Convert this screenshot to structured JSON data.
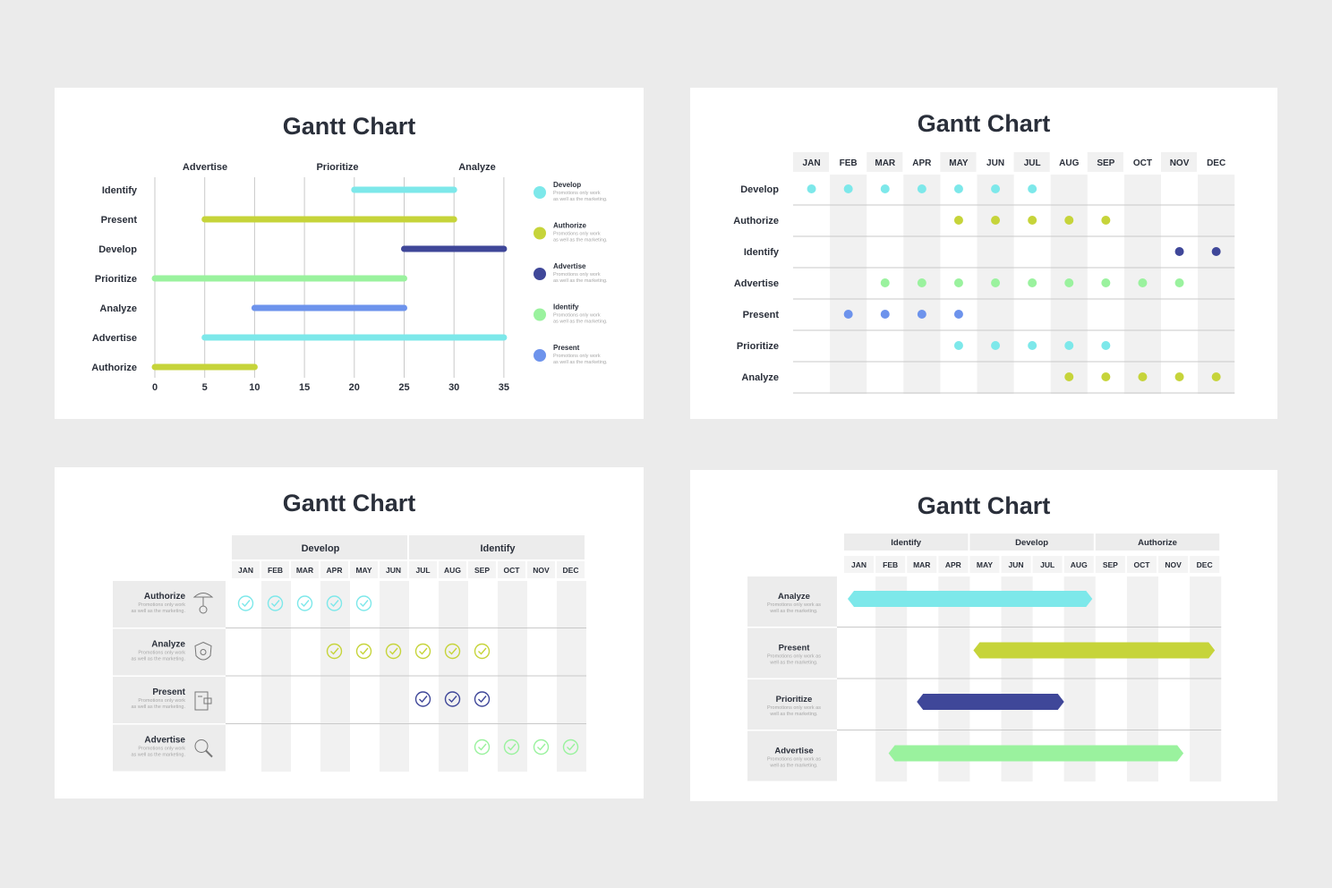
{
  "colors": {
    "cyan": "#7de8ea",
    "lime": "#c6d43a",
    "navy": "#3f4799",
    "green": "#9af29e",
    "blue": "#6d93ec",
    "stripe": "#f1f1f1",
    "grid": "#c9c9c9",
    "text": "#2a2f3a",
    "muted": "#a7a7a7"
  },
  "chart_data": [
    {
      "type": "bar",
      "title": "Gantt Chart",
      "phases": [
        "Advertise",
        "Prioritize",
        "Analyze"
      ],
      "categories": [
        "Identify",
        "Present",
        "Develop",
        "Prioritize",
        "Analyze",
        "Advertise",
        "Authorize"
      ],
      "starts": [
        20,
        5,
        25,
        0,
        10,
        5,
        0
      ],
      "ends": [
        30,
        30,
        35,
        25,
        25,
        35,
        10
      ],
      "bar_colors": [
        "cyan",
        "lime",
        "navy",
        "green",
        "blue",
        "cyan",
        "lime"
      ],
      "xlim": [
        0,
        35
      ],
      "xticks": [
        "0",
        "5",
        "10",
        "15",
        "20",
        "25",
        "30",
        "35"
      ],
      "legend": [
        {
          "name": "Develop",
          "color": "cyan",
          "desc1": "Promotions only work",
          "desc2": "as well as the marketing."
        },
        {
          "name": "Authorize",
          "color": "lime",
          "desc1": "Promotions only work",
          "desc2": "as well as the marketing."
        },
        {
          "name": "Advertise",
          "color": "navy",
          "desc1": "Promotions only work",
          "desc2": "as well as the marketing."
        },
        {
          "name": "Identify",
          "color": "green",
          "desc1": "Promotions only work",
          "desc2": "as well as the marketing."
        },
        {
          "name": "Present",
          "color": "blue",
          "desc1": "Promotions only work",
          "desc2": "as well as the marketing."
        }
      ],
      "legend_position": "right",
      "grid": true
    },
    {
      "type": "scatter",
      "title": "Gantt Chart",
      "months": [
        "JAN",
        "FEB",
        "MAR",
        "APR",
        "MAY",
        "JUN",
        "JUL",
        "AUG",
        "SEP",
        "OCT",
        "NOV",
        "DEC"
      ],
      "rows": [
        {
          "label": "Develop",
          "color": "cyan",
          "months": [
            1,
            2,
            3,
            4,
            5,
            6,
            7
          ]
        },
        {
          "label": "Authorize",
          "color": "lime",
          "months": [
            5,
            6,
            7,
            8,
            9
          ]
        },
        {
          "label": "Identify",
          "color": "navy",
          "months": [
            11,
            12
          ]
        },
        {
          "label": "Advertise",
          "color": "green",
          "months": [
            3,
            4,
            5,
            6,
            7,
            8,
            9,
            10,
            11
          ]
        },
        {
          "label": "Present",
          "color": "blue",
          "months": [
            2,
            3,
            4,
            5
          ]
        },
        {
          "label": "Prioritize",
          "color": "cyan",
          "months": [
            5,
            6,
            7,
            8,
            9
          ]
        },
        {
          "label": "Analyze",
          "color": "lime",
          "months": [
            8,
            9,
            10,
            11,
            12
          ]
        }
      ]
    },
    {
      "type": "table",
      "title": "Gantt Chart",
      "groups": [
        {
          "name": "Develop",
          "span": 6
        },
        {
          "name": "Identify",
          "span": 6
        }
      ],
      "months": [
        "JAN",
        "FEB",
        "MAR",
        "APR",
        "MAY",
        "JUN",
        "JUL",
        "AUG",
        "SEP",
        "OCT",
        "NOV",
        "DEC"
      ],
      "rows": [
        {
          "label": "Authorize",
          "desc1": "Promotions only work",
          "desc2": "as well as the marketing.",
          "icon": "pin-icon",
          "color": "cyan",
          "months": [
            1,
            2,
            3,
            4,
            5
          ]
        },
        {
          "label": "Analyze",
          "desc1": "Promotions only work",
          "desc2": "as well as the marketing.",
          "icon": "shield-icon",
          "color": "lime",
          "months": [
            4,
            5,
            6,
            7,
            8,
            9
          ]
        },
        {
          "label": "Present",
          "desc1": "Promotions only work",
          "desc2": "as well as the marketing.",
          "icon": "card-icon",
          "color": "navy",
          "months": [
            7,
            8,
            9
          ]
        },
        {
          "label": "Advertise",
          "desc1": "Promotions only work",
          "desc2": "as well as the marketing.",
          "icon": "magnifier-icon",
          "color": "green",
          "months": [
            9,
            10,
            11,
            12
          ]
        }
      ]
    },
    {
      "type": "bar",
      "title": "Gantt Chart",
      "groups": [
        {
          "name": "Identify",
          "span": 4
        },
        {
          "name": "Develop",
          "span": 4
        },
        {
          "name": "Authorize",
          "span": 4
        }
      ],
      "months": [
        "JAN",
        "FEB",
        "MAR",
        "APR",
        "MAY",
        "JUN",
        "JUL",
        "AUG",
        "SEP",
        "OCT",
        "NOV",
        "DEC"
      ],
      "rows": [
        {
          "label": "Analyze",
          "desc1": "Promotions only work as",
          "desc2": "well as the marketing.",
          "color": "cyan",
          "start": 1,
          "end": 8.4
        },
        {
          "label": "Present",
          "desc1": "Promotions only work as",
          "desc2": "well as the marketing.",
          "color": "lime",
          "start": 5,
          "end": 12.3
        },
        {
          "label": "Prioritize",
          "desc1": "Promotions only work as",
          "desc2": "well as the marketing.",
          "color": "navy",
          "start": 3.2,
          "end": 7.5
        },
        {
          "label": "Advertise",
          "desc1": "Promotions only work as",
          "desc2": "well as the marketing.",
          "color": "green",
          "start": 2.3,
          "end": 11.3
        }
      ]
    }
  ]
}
